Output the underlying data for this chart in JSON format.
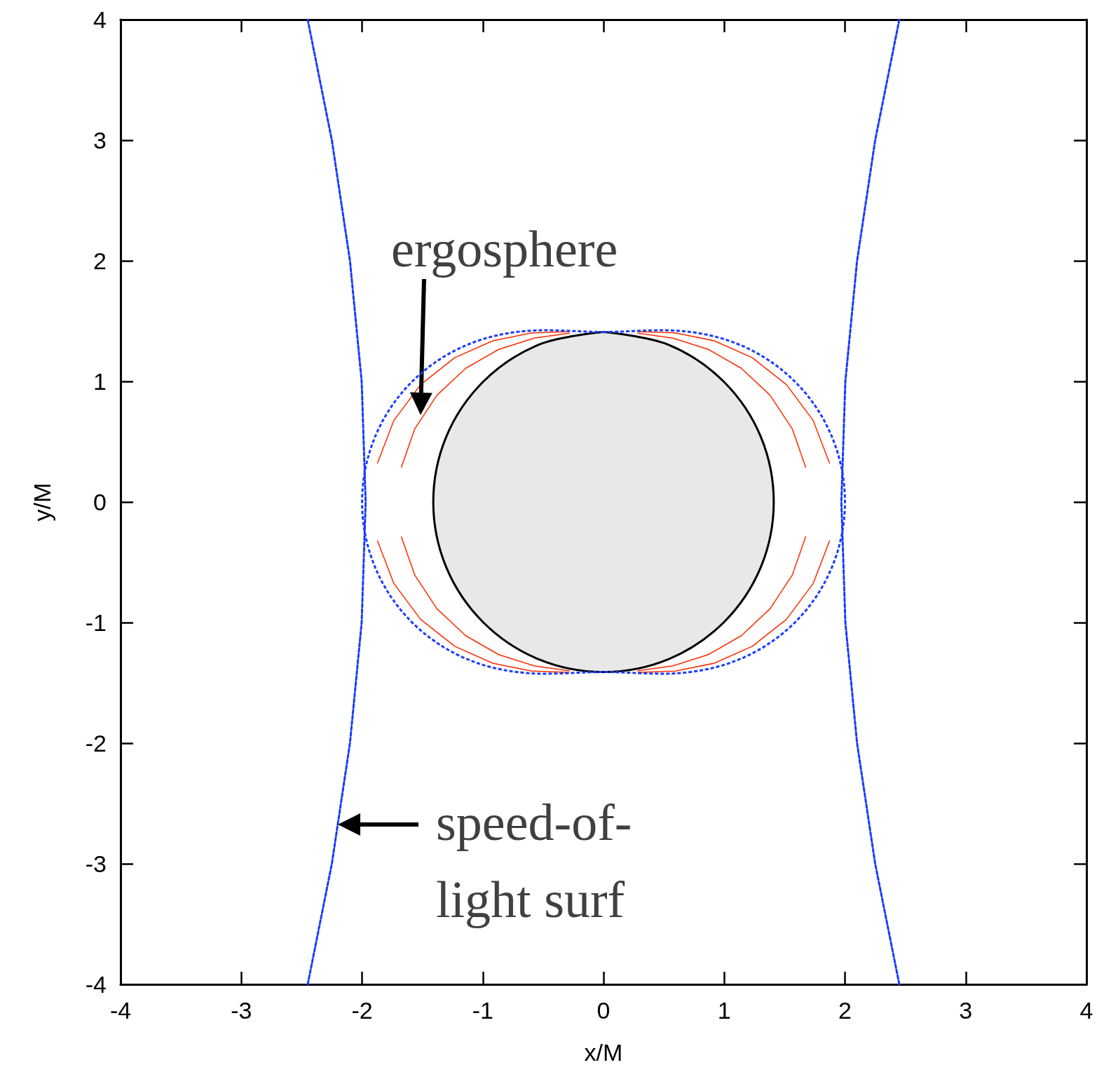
{
  "chart_data": {
    "type": "line",
    "xlabel": "x/M",
    "ylabel": "y/M",
    "xlim": [
      -4,
      4
    ],
    "ylim": [
      -4,
      4
    ],
    "xticks": [
      -4,
      -3,
      -2,
      -1,
      0,
      1,
      2,
      3,
      4
    ],
    "yticks": [
      -4,
      -3,
      -2,
      -1,
      0,
      1,
      2,
      3,
      4
    ],
    "grid": false,
    "marker": "none",
    "annotations": [
      "ergosphere",
      "speed-of-\nlight surf"
    ],
    "series": [
      {
        "color": "#ff2a00",
        "line_style": "solid",
        "x": [
          0.287,
          0.592,
          0.916,
          1.232,
          1.515,
          1.737,
          1.872
        ],
        "values": [
          1.413,
          1.402,
          1.337,
          1.197,
          0.973,
          0.675,
          0.323
        ]
      },
      {
        "color": "#ff2a00",
        "line_style": "solid",
        "x": [
          0.284,
          0.574,
          0.867,
          1.141,
          1.379,
          1.563,
          1.674
        ],
        "values": [
          1.4,
          1.359,
          1.266,
          1.109,
          0.886,
          0.607,
          0.289
        ]
      },
      {
        "color": "#ff2a00",
        "line_style": "solid",
        "x": [
          0.287,
          0.592,
          0.916,
          1.232,
          1.515,
          1.737,
          1.872
        ],
        "values": [
          -1.413,
          -1.402,
          -1.337,
          -1.197,
          -0.973,
          -0.675,
          -0.323
        ]
      },
      {
        "color": "#ff2a00",
        "line_style": "solid",
        "x": [
          0.284,
          0.574,
          0.867,
          1.141,
          1.379,
          1.563,
          1.674
        ],
        "values": [
          -1.4,
          -1.359,
          -1.266,
          -1.109,
          -0.886,
          -0.607,
          -0.289
        ]
      },
      {
        "color": "#ff2a00",
        "line_style": "solid",
        "x": [
          -0.287,
          -0.592,
          -0.916,
          -1.232,
          -1.515,
          -1.737,
          -1.872
        ],
        "values": [
          1.413,
          1.402,
          1.337,
          1.197,
          0.973,
          0.675,
          0.323
        ]
      },
      {
        "color": "#ff2a00",
        "line_style": "solid",
        "x": [
          -0.284,
          -0.574,
          -0.867,
          -1.141,
          -1.379,
          -1.563,
          -1.674
        ],
        "values": [
          1.4,
          1.359,
          1.266,
          1.109,
          0.886,
          0.607,
          0.289
        ]
      },
      {
        "color": "#ff2a00",
        "line_style": "solid",
        "x": [
          -0.287,
          -0.592,
          -0.916,
          -1.232,
          -1.515,
          -1.737,
          -1.872
        ],
        "values": [
          -1.413,
          -1.402,
          -1.337,
          -1.197,
          -0.973,
          -0.675,
          -0.323
        ]
      },
      {
        "color": "#ff2a00",
        "line_style": "solid",
        "x": [
          -0.284,
          -0.574,
          -0.867,
          -1.141,
          -1.379,
          -1.563,
          -1.674
        ],
        "values": [
          -1.4,
          -1.359,
          -1.266,
          -1.109,
          -0.886,
          -0.607,
          -0.289
        ]
      },
      {
        "color": "#1a3cff",
        "line_style": "dotted",
        "x": [
          2.45,
          2.25,
          2.1,
          2.003,
          1.97,
          2.003,
          2.1,
          2.25,
          2.45
        ],
        "values": [
          -4,
          -3,
          -2,
          -1,
          0,
          1,
          2,
          3,
          4
        ]
      },
      {
        "color": "#1a3cff",
        "line_style": "dotted",
        "x": [
          -2.45,
          -2.25,
          -2.1,
          -2.003,
          -1.97,
          -2.003,
          -2.1,
          -2.25,
          -2.45
        ],
        "values": [
          -4,
          -3,
          -2,
          -1,
          0,
          1,
          2,
          3,
          4
        ]
      },
      {
        "type": "area",
        "color": "#000000",
        "line_style": "solid",
        "x": [
          0,
          0.54,
          0.997,
          1.303,
          1.41,
          1.303,
          0.997,
          0.54,
          0,
          -0.54,
          -0.997,
          -1.303,
          -1.41,
          -1.303,
          -0.997,
          -0.54,
          0
        ],
        "values": [
          1.41,
          1.303,
          0.997,
          0.54,
          0,
          -0.54,
          -0.997,
          -1.303,
          -1.41,
          -1.303,
          -0.997,
          -0.54,
          0,
          0.54,
          0.997,
          1.303,
          1.41
        ]
      }
    ]
  }
}
